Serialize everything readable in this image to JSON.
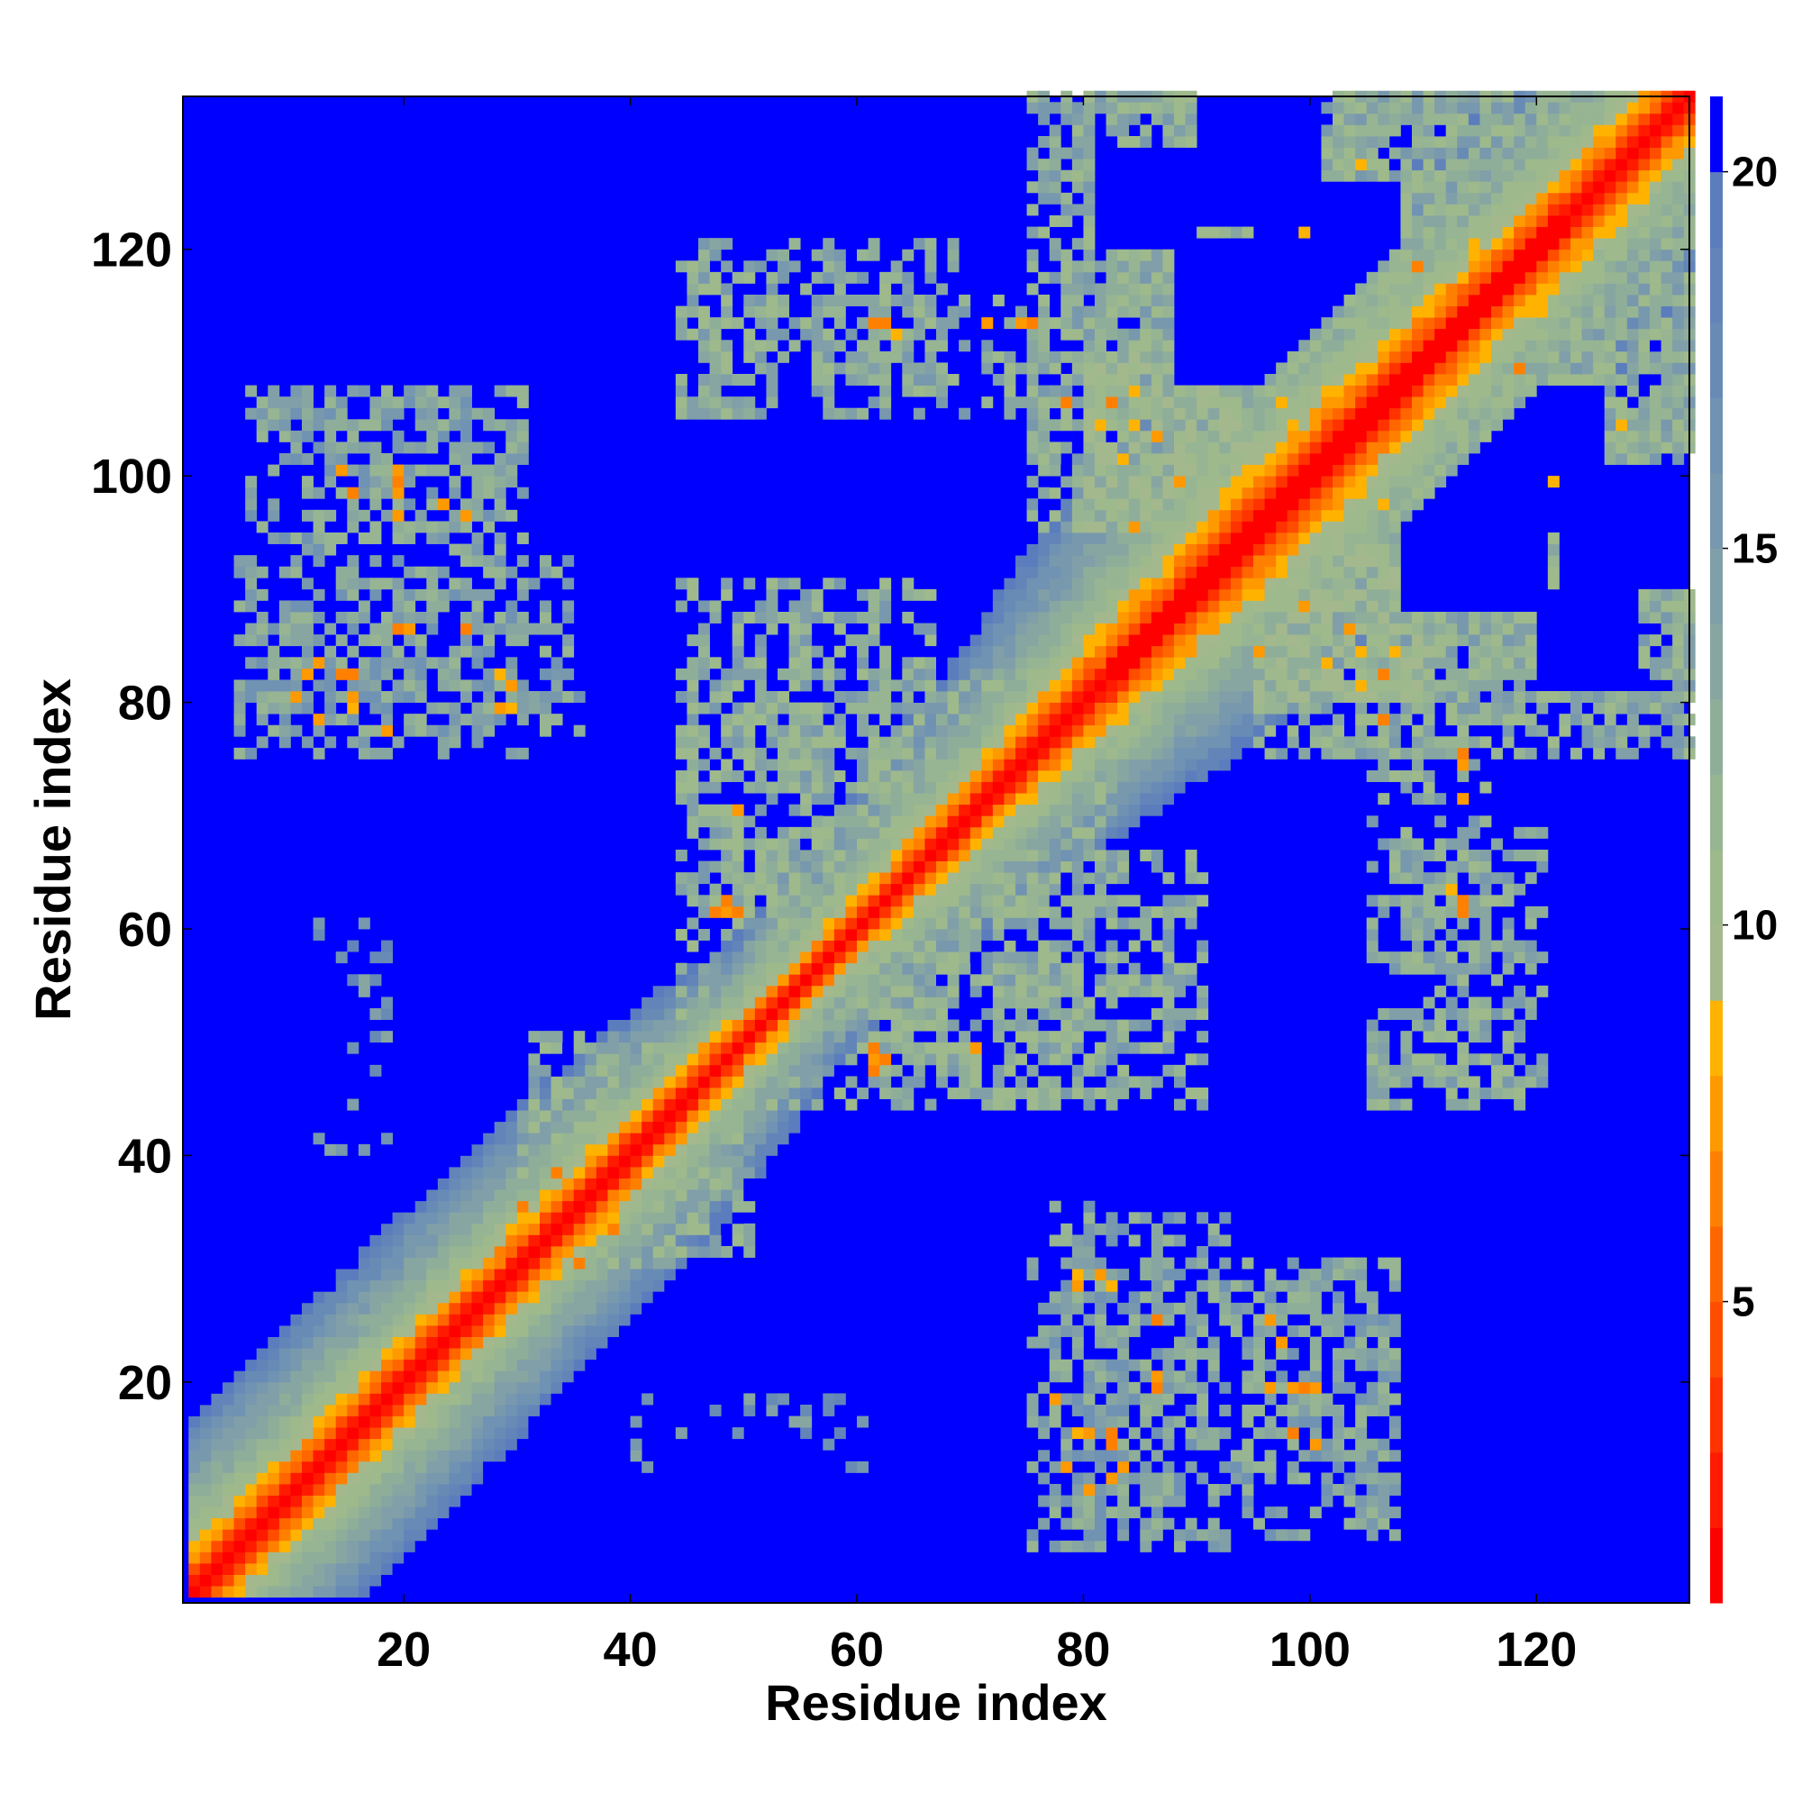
{
  "chart_data": {
    "type": "heatmap",
    "title": "",
    "xlabel": "Residue index",
    "ylabel": "Residue index",
    "n_residues": 133,
    "xlim": [
      1,
      133
    ],
    "ylim": [
      1,
      133
    ],
    "xticks": [
      20,
      40,
      60,
      80,
      100,
      120
    ],
    "yticks": [
      20,
      40,
      60,
      80,
      100,
      120
    ],
    "grid": false,
    "colorbar": {
      "location": "right",
      "ticks": [
        5,
        10,
        15,
        20
      ],
      "range": [
        1,
        21
      ],
      "description": "discrete levels; red = small, orange ~6-8, sage green ~10-13, steel blue ~14-20, saturated blue > 20",
      "levels": [
        {
          "max": 2,
          "color": "#ff0000"
        },
        {
          "max": 3,
          "color": "#ff1a00"
        },
        {
          "max": 4,
          "color": "#ff3300"
        },
        {
          "max": 5,
          "color": "#ff4d00"
        },
        {
          "max": 6,
          "color": "#ff6600"
        },
        {
          "max": 7,
          "color": "#ff8000"
        },
        {
          "max": 8,
          "color": "#ff9900"
        },
        {
          "max": 9,
          "color": "#ffb300"
        },
        {
          "max": 10,
          "color": "#a4b88e"
        },
        {
          "max": 11,
          "color": "#9eb98c"
        },
        {
          "max": 12,
          "color": "#97b592"
        },
        {
          "max": 13,
          "color": "#8fae9a"
        },
        {
          "max": 14,
          "color": "#87a6a2"
        },
        {
          "max": 15,
          "color": "#809fa8"
        },
        {
          "max": 16,
          "color": "#7898ad"
        },
        {
          "max": 17,
          "color": "#7092b3"
        },
        {
          "max": 18,
          "color": "#688bb6"
        },
        {
          "max": 19,
          "color": "#6284b9"
        },
        {
          "max": 20,
          "color": "#5b7dbd"
        },
        {
          "max": 21,
          "color": "#0000ff"
        }
      ]
    },
    "background_value": 21,
    "diagonal_band": {
      "description": "distance grows with |i-j|; band is widest near residues 85-110",
      "profile": [
        {
          "d": 0,
          "v": 1
        },
        {
          "d": 1,
          "v": 2
        },
        {
          "d": 2,
          "v": 4.5
        },
        {
          "d": 3,
          "v": 6.5
        },
        {
          "d": 4,
          "v": 8
        },
        {
          "d": 6,
          "v": 10.5
        },
        {
          "d": 9,
          "v": 12.5
        },
        {
          "d": 12,
          "v": 14.5
        },
        {
          "d": 15,
          "v": 17
        },
        {
          "d": 18,
          "v": 20
        },
        {
          "d": 20,
          "v": 21
        }
      ],
      "width_scale": [
        {
          "pos": 1,
          "s": 0.9
        },
        {
          "pos": 40,
          "s": 0.8
        },
        {
          "pos": 55,
          "s": 0.55
        },
        {
          "pos": 75,
          "s": 0.85
        },
        {
          "pos": 95,
          "s": 1.25
        },
        {
          "pos": 110,
          "s": 1.1
        },
        {
          "pos": 133,
          "s": 0.9
        }
      ]
    },
    "contact_regions": [
      {
        "x": [
          95,
          133
        ],
        "y": [
          80,
          133
        ],
        "v": 13,
        "density": 0.6
      },
      {
        "x": [
          75,
          100
        ],
        "y": [
          95,
          133
        ],
        "v": 13,
        "density": 0.6
      },
      {
        "x": [
          80,
          95
        ],
        "y": [
          95,
          110
        ],
        "v": 11,
        "density": 0.7
      },
      {
        "x": [
          45,
          68
        ],
        "y": [
          108,
          120
        ],
        "v": 13,
        "density": 0.4
      },
      {
        "x": [
          10,
          30
        ],
        "y": [
          93,
          107
        ],
        "v": 14,
        "density": 0.4
      },
      {
        "x": [
          5,
          35
        ],
        "y": [
          77,
          92
        ],
        "v": 14,
        "density": 0.4
      },
      {
        "x": [
          45,
          75
        ],
        "y": [
          60,
          82
        ],
        "v": 13,
        "density": 0.45
      },
      {
        "x": [
          50,
          90
        ],
        "y": [
          44,
          66
        ],
        "v": 13,
        "density": 0.45
      },
      {
        "x": [
          75,
          90
        ],
        "y": [
          5,
          30
        ],
        "v": 14,
        "density": 0.4
      },
      {
        "x": [
          94,
          107
        ],
        "y": [
          6,
          30
        ],
        "v": 14,
        "density": 0.4
      },
      {
        "x": [
          105,
          118
        ],
        "y": [
          44,
          52
        ],
        "v": 13,
        "density": 0.55
      },
      {
        "x": [
          105,
          115
        ],
        "y": [
          56,
          66
        ],
        "v": 13,
        "density": 0.5
      },
      {
        "x": [
          40,
          60
        ],
        "y": [
          12,
          18
        ],
        "v": 16,
        "density": 0.2
      },
      {
        "x": [
          105,
          115
        ],
        "y": [
          65,
          80
        ],
        "v": 13,
        "density": 0.4
      },
      {
        "x": [
          30,
          48
        ],
        "y": [
          35,
          50
        ],
        "v": 13,
        "density": 0.4
      },
      {
        "x": [
          120,
          133
        ],
        "y": [
          85,
          115
        ],
        "v": 13,
        "density": 0.45
      }
    ],
    "hotspots": [
      [
        47,
        61
      ],
      [
        48,
        61
      ],
      [
        62,
        48
      ],
      [
        61,
        49
      ],
      [
        70,
        49
      ],
      [
        62,
        113
      ],
      [
        61,
        113
      ],
      [
        75,
        113
      ],
      [
        84,
        104
      ],
      [
        86,
        103
      ],
      [
        84,
        86
      ],
      [
        89,
        84
      ],
      [
        82,
        106
      ],
      [
        84,
        107
      ],
      [
        88,
        99
      ],
      [
        95,
        84
      ],
      [
        101,
        83
      ],
      [
        104,
        81
      ],
      [
        106,
        78
      ],
      [
        97,
        106
      ],
      [
        99,
        121
      ],
      [
        104,
        127
      ],
      [
        109,
        118
      ],
      [
        115,
        115
      ],
      [
        120,
        114
      ],
      [
        113,
        61
      ],
      [
        112,
        63
      ],
      [
        113,
        71
      ],
      [
        113,
        74
      ],
      [
        79,
        28
      ],
      [
        82,
        28
      ],
      [
        86,
        19
      ],
      [
        80,
        15
      ],
      [
        82,
        15
      ],
      [
        83,
        12
      ],
      [
        96,
        19
      ],
      [
        97,
        23
      ],
      [
        99,
        19
      ],
      [
        98,
        15
      ],
      [
        11,
        82
      ],
      [
        14,
        82
      ],
      [
        29,
        81
      ],
      [
        29,
        79
      ],
      [
        14,
        100
      ],
      [
        19,
        100
      ],
      [
        19,
        98
      ],
      [
        25,
        96
      ],
      [
        20,
        86
      ],
      [
        25,
        86
      ],
      [
        10,
        80
      ],
      [
        15,
        79
      ],
      [
        12,
        78
      ],
      [
        18,
        77
      ],
      [
        40,
        38
      ],
      [
        44,
        43
      ],
      [
        38,
        33
      ],
      [
        35,
        30
      ],
      [
        25,
        24
      ]
    ],
    "holes": [
      {
        "x": [
          122,
          133
        ],
        "y": [
          90,
          100
        ]
      },
      {
        "x": [
          108,
          120
        ],
        "y": [
          88,
          97
        ]
      },
      {
        "x": [
          95,
          107
        ],
        "y": [
          110,
          125
        ]
      },
      {
        "x": [
          81,
          89
        ],
        "y": [
          120,
          128
        ]
      }
    ]
  }
}
